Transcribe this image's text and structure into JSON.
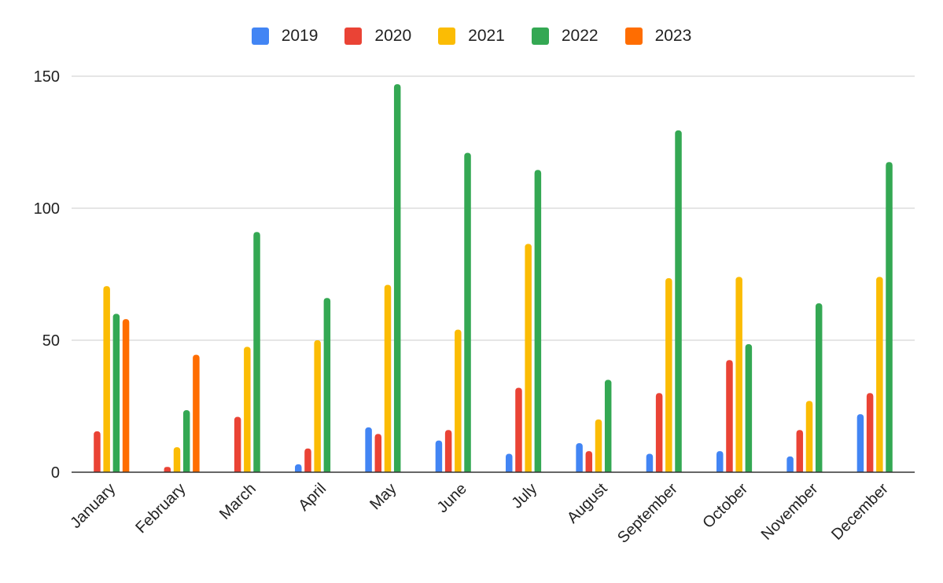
{
  "chart_data": {
    "type": "bar",
    "title": "",
    "xlabel": "",
    "ylabel": "",
    "ylim": [
      0,
      150
    ],
    "yticks": [
      0,
      50,
      100,
      150
    ],
    "grid": true,
    "legend_position": "top-center",
    "categories": [
      "January",
      "February",
      "March",
      "April",
      "May",
      "June",
      "July",
      "August",
      "September",
      "October",
      "November",
      "December"
    ],
    "series": [
      {
        "name": "2019",
        "color": "#4285F4",
        "values": [
          0,
          0,
          0,
          3,
          17,
          12,
          7,
          11,
          7,
          8,
          6,
          22
        ]
      },
      {
        "name": "2020",
        "color": "#EA4335",
        "values": [
          15.5,
          2,
          21,
          9,
          14.5,
          16,
          32,
          8,
          30,
          42.5,
          16,
          30
        ]
      },
      {
        "name": "2021",
        "color": "#FBBC04",
        "values": [
          70.5,
          9.5,
          47.5,
          50,
          71,
          54,
          86.5,
          20,
          73.5,
          74,
          27,
          74
        ]
      },
      {
        "name": "2022",
        "color": "#34A853",
        "values": [
          60,
          23.5,
          91,
          66,
          147,
          121,
          114.5,
          35,
          129.5,
          48.5,
          64,
          117.5
        ]
      },
      {
        "name": "2023",
        "color": "#FF6D01",
        "values": [
          58,
          44.5,
          0,
          0,
          0,
          0,
          0,
          0,
          0,
          0,
          0,
          0
        ]
      }
    ]
  }
}
